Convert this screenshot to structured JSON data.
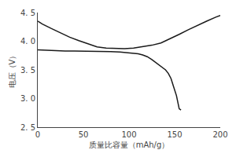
{
  "chart_data": {
    "type": "line",
    "xlabel": "质量比容量（mAh/g）",
    "ylabel": "电压（V）",
    "xlim": [
      0,
      200
    ],
    "ylim": [
      2.5,
      4.5
    ],
    "xticks": [
      0,
      50,
      100,
      150,
      200
    ],
    "yticks": [
      {
        "value": 2.5,
        "label": "2. 5"
      },
      {
        "value": 3.0,
        "label": "3. 0"
      },
      {
        "value": 3.5,
        "label": "3. 5"
      },
      {
        "value": 4.0,
        "label": "4. 0"
      },
      {
        "value": 4.5,
        "label": "4. 5"
      }
    ],
    "grid": false,
    "series": [
      {
        "color": "#1a1a1a",
        "x": [
          0,
          5,
          15,
          25,
          35,
          45,
          55,
          65,
          75,
          85,
          95,
          105,
          115,
          125,
          135,
          145,
          155,
          165,
          175,
          185,
          195,
          200
        ],
        "values": [
          4.35,
          4.3,
          4.22,
          4.14,
          4.07,
          4.01,
          3.95,
          3.9,
          3.88,
          3.87,
          3.87,
          3.88,
          3.9,
          3.93,
          3.97,
          4.04,
          4.12,
          4.2,
          4.28,
          4.35,
          4.42,
          4.45
        ]
      },
      {
        "color": "#1a1a1a",
        "x": [
          0,
          10,
          20,
          30,
          40,
          50,
          60,
          70,
          80,
          90,
          100,
          110,
          115,
          120,
          125,
          130,
          135,
          140,
          143,
          146,
          149,
          152,
          155,
          157
        ],
        "values": [
          3.85,
          3.84,
          3.84,
          3.83,
          3.83,
          3.83,
          3.82,
          3.82,
          3.82,
          3.81,
          3.8,
          3.78,
          3.76,
          3.73,
          3.68,
          3.62,
          3.56,
          3.5,
          3.44,
          3.35,
          3.2,
          3.05,
          2.82,
          2.8
        ]
      }
    ]
  }
}
